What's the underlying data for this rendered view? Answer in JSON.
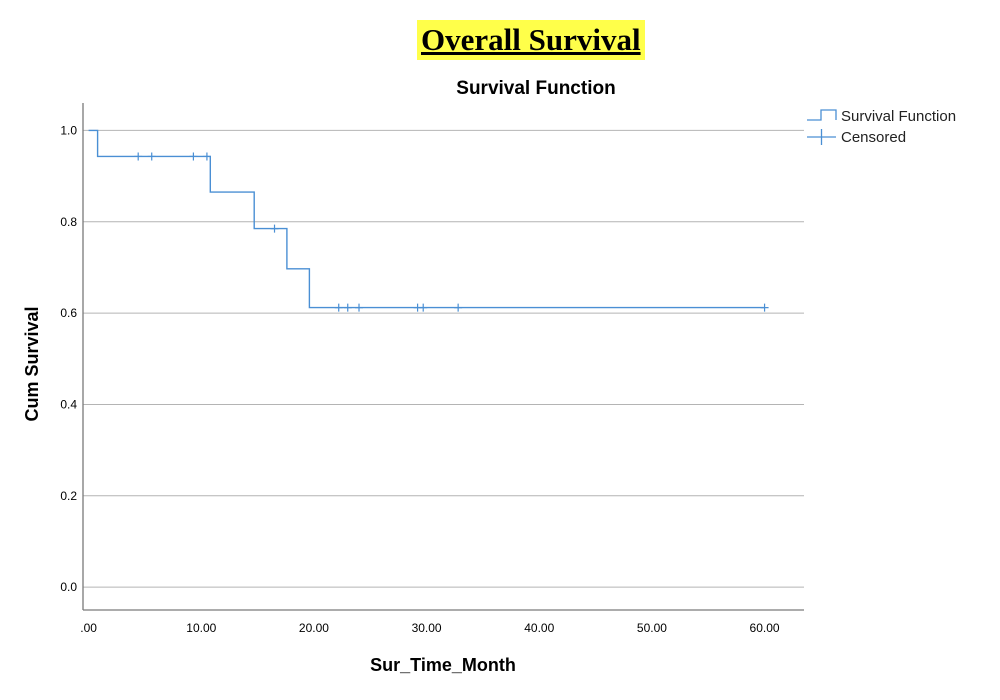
{
  "heading": "Overall Survival",
  "chart_data": {
    "type": "line",
    "title": "Survival Function",
    "xlabel": "Sur_Time_Month",
    "ylabel": "Cum Survival",
    "xlim": [
      -0.5,
      63.5
    ],
    "ylim": [
      -0.05,
      1.06
    ],
    "xticks": [
      0,
      10,
      20,
      30,
      40,
      50,
      60
    ],
    "xtick_labels": [
      ".00",
      "10.00",
      "20.00",
      "30.00",
      "40.00",
      "50.00",
      "60.00"
    ],
    "yticks": [
      0.0,
      0.2,
      0.4,
      0.6,
      0.8,
      1.0
    ],
    "ytick_labels": [
      "0.0",
      "0.2",
      "0.4",
      "0.6",
      "0.8",
      "1.0"
    ],
    "grid": "horizontal",
    "legend_position": "top-right",
    "colors": {
      "series": "#4a8fd4",
      "grid": "#b4b4b4",
      "axis": "#7a7a7a",
      "highlight": "#ffff4a"
    },
    "series": [
      {
        "name": "Survival Function",
        "step_x": [
          0,
          0.8,
          0.8,
          10.8,
          10.8,
          14.7,
          14.7,
          17.6,
          17.6,
          19.6,
          19.6,
          60
        ],
        "step_y": [
          1.0,
          1.0,
          0.943,
          0.943,
          0.865,
          0.865,
          0.785,
          0.785,
          0.697,
          0.697,
          0.612,
          0.612
        ]
      },
      {
        "name": "Censored",
        "x": [
          4.4,
          5.6,
          9.3,
          10.5,
          16.5,
          22.2,
          23.0,
          24.0,
          29.2,
          29.7,
          32.8,
          60.0
        ],
        "y": [
          0.943,
          0.943,
          0.943,
          0.943,
          0.785,
          0.612,
          0.612,
          0.612,
          0.612,
          0.612,
          0.612,
          0.612
        ]
      }
    ]
  }
}
